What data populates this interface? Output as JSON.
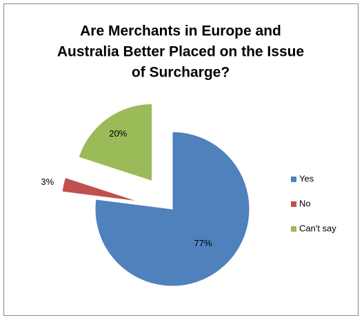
{
  "chart_data": {
    "type": "pie",
    "title": [
      "Are  Merchants in Europe and",
      "Australia Better Placed on the Issue",
      "of Surcharge?"
    ],
    "categories": [
      "Yes",
      "No",
      "Can't say"
    ],
    "values": [
      77,
      3,
      20
    ],
    "value_labels": [
      "77%",
      "3%",
      "20%"
    ],
    "colors": [
      "#4f81bd",
      "#c0504d",
      "#9bbb59"
    ],
    "legend": "right"
  }
}
